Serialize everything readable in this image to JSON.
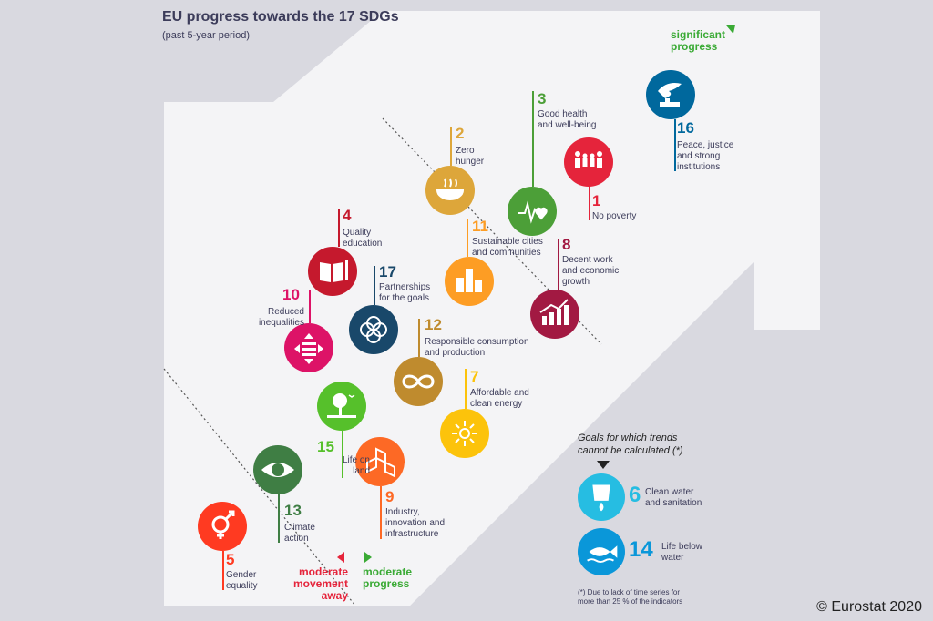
{
  "title": "EU progress towards the 17 SDGs",
  "subtitle": "(past 5-year period)",
  "zones": {
    "significant": "significant\nprogress",
    "moderate_progress": "moderate\nprogress",
    "moderate_away": "moderate\nmovement\naway"
  },
  "goals": [
    {
      "num": "1",
      "label": "No poverty",
      "color": "#e5243b"
    },
    {
      "num": "2",
      "label": "Zero\nhunger",
      "color": "#dda63a"
    },
    {
      "num": "3",
      "label": "Good health\nand well-being",
      "color": "#4c9f38"
    },
    {
      "num": "4",
      "label": "Quality\neducation",
      "color": "#c5192d"
    },
    {
      "num": "5",
      "label": "Gender\nequality",
      "color": "#ff3a21"
    },
    {
      "num": "7",
      "label": "Affordable and\nclean energy",
      "color": "#fcc30b"
    },
    {
      "num": "8",
      "label": "Decent work\nand economic\ngrowth",
      "color": "#a21942"
    },
    {
      "num": "9",
      "label": "Industry,\ninnovation and\ninfrastructure",
      "color": "#fd6925"
    },
    {
      "num": "10",
      "label": "Reduced\ninequalities",
      "color": "#dd1367"
    },
    {
      "num": "11",
      "label": "Sustainable cities\nand communities",
      "color": "#fd9d24"
    },
    {
      "num": "12",
      "label": "Responsible consumption\nand production",
      "color": "#bf8b2e"
    },
    {
      "num": "13",
      "label": "Climate\naction",
      "color": "#3f7e44"
    },
    {
      "num": "15",
      "label": "Life on\nland",
      "color": "#56c02b"
    },
    {
      "num": "16",
      "label": "Peace, justice\nand strong\ninstitutions",
      "color": "#00689d"
    },
    {
      "num": "17",
      "label": "Partnerships\nfor the goals",
      "color": "#19486a"
    }
  ],
  "no_trend": {
    "title": "Goals for which trends\ncannot be calculated  (*)",
    "goals": [
      {
        "num": "6",
        "label": "Clean water\nand sanitation",
        "color": "#26bde2"
      },
      {
        "num": "14",
        "label": "Life below\nwater",
        "color": "#0a97d9"
      }
    ],
    "note": "(*)  Due to lack of time series for\n       more than 25 % of the indicators"
  },
  "copyright": "© Eurostat 2020",
  "colors": {
    "significant": "#3aaa35",
    "moderate_progress": "#3aaa35",
    "moderate_away": "#e5243b",
    "text": "#3c3c5a"
  }
}
